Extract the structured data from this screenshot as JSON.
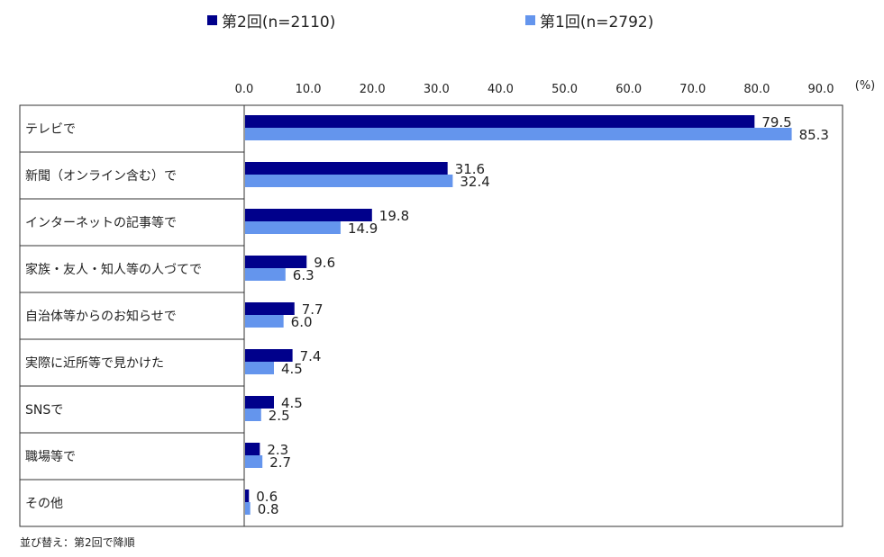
{
  "chart_data": {
    "type": "bar",
    "orientation": "horizontal",
    "unit_label": "(%)",
    "categories": [
      "テレビで",
      "新聞（オンライン含む）で",
      "インターネットの記事等で",
      "家族・友人・知人等の人づてで",
      "自治体等からのお知らせで",
      "実際に近所等で見かけた",
      "SNSで",
      "職場等で",
      "その他"
    ],
    "series": [
      {
        "name": "第2回(n=2110)",
        "color": "#00008b",
        "values": [
          79.5,
          31.6,
          19.8,
          9.6,
          7.7,
          7.4,
          4.5,
          2.3,
          0.6
        ]
      },
      {
        "name": "第1回(n=2792)",
        "color": "#6495ed",
        "values": [
          85.3,
          32.4,
          14.9,
          6.3,
          6.0,
          4.5,
          2.5,
          2.7,
          0.8
        ]
      }
    ],
    "ticks": [
      "0.0",
      "10.0",
      "20.0",
      "30.0",
      "40.0",
      "50.0",
      "60.0",
      "70.0",
      "80.0",
      "90.0"
    ],
    "xlim": [
      0,
      90
    ],
    "grid": false,
    "legend_position": "top"
  },
  "footnote": "並び替え：第2回で降順"
}
